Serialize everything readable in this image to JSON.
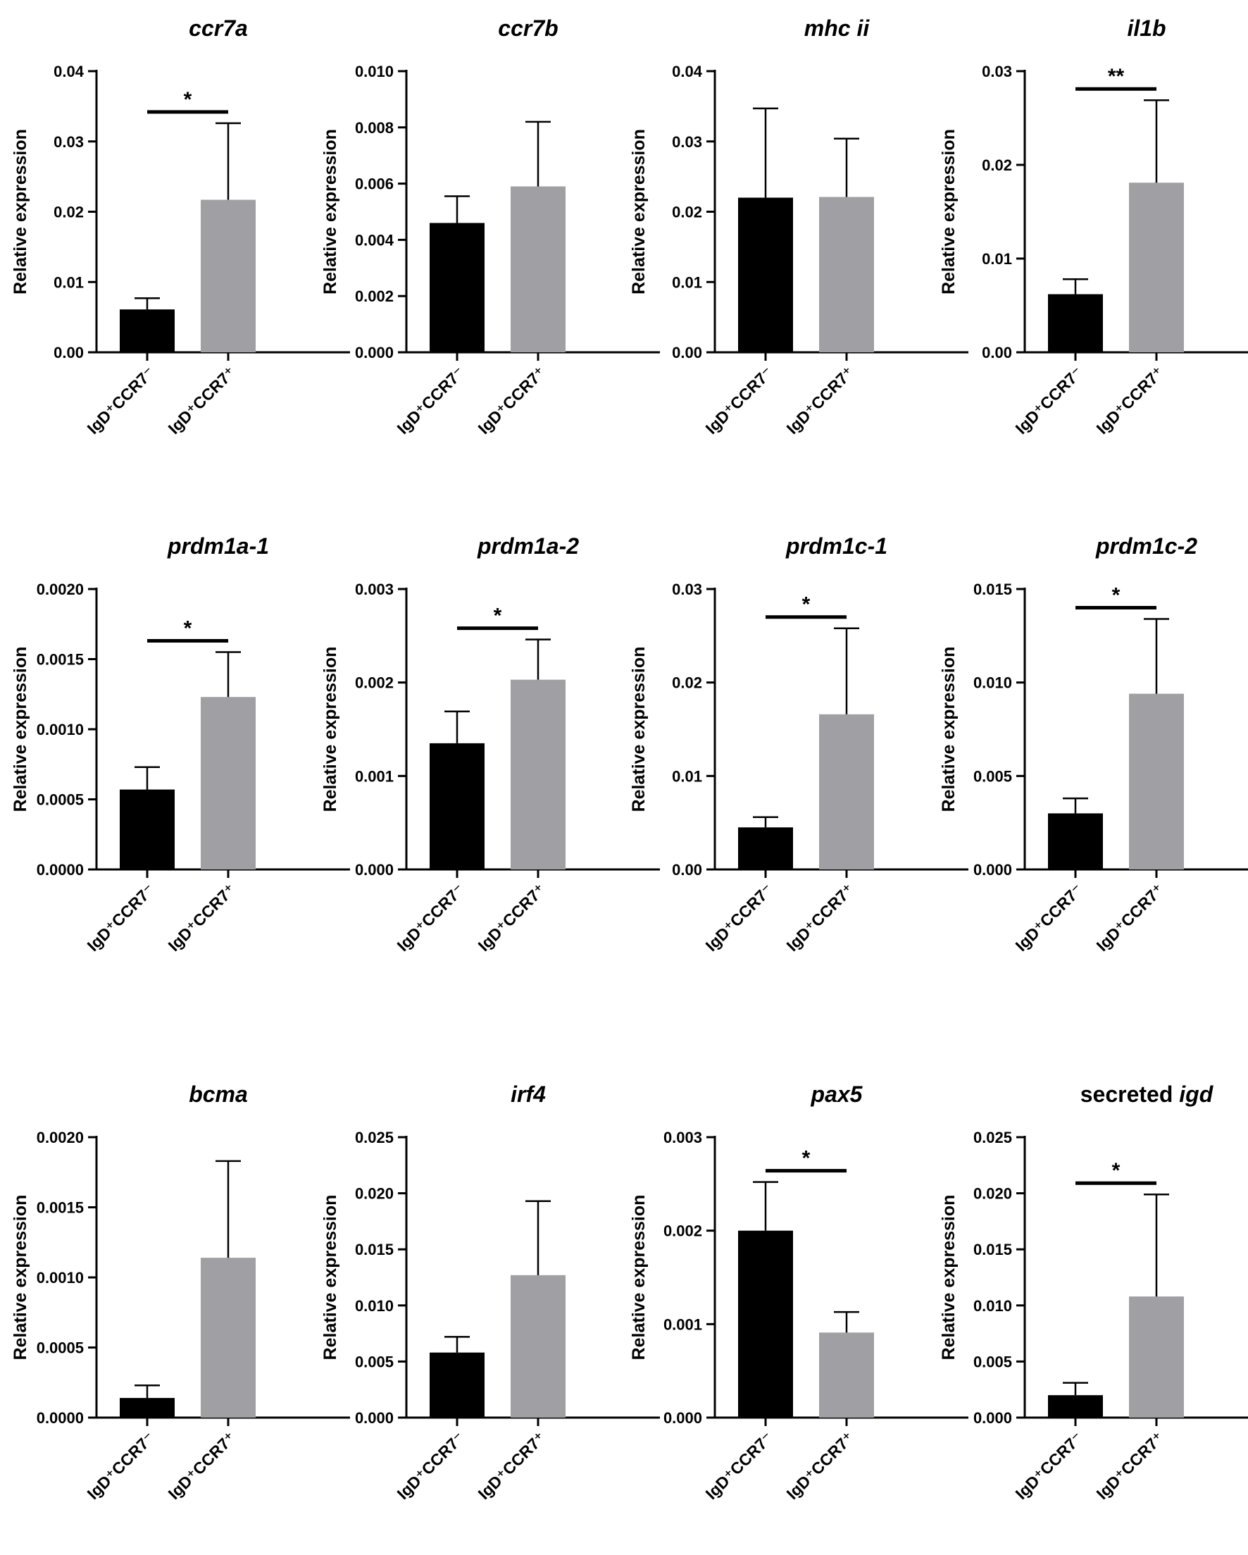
{
  "colors": {
    "group1": "#000000",
    "group2": "#a0a0a4",
    "axis": "#000000"
  },
  "chart_data": [
    {
      "type": "bar",
      "title": "ccr7a",
      "title_parts": [
        {
          "text": "ccr7a",
          "italic": true
        }
      ],
      "ylabel": "Relative expression",
      "ylim": [
        0,
        0.04
      ],
      "yticks": [
        "0.00",
        "0.01",
        "0.02",
        "0.03",
        "0.04"
      ],
      "categories": [
        "IgD⁺CCR7⁻",
        "IgD⁺CCR7⁺"
      ],
      "values": [
        0.0061,
        0.0217
      ],
      "errors": [
        0.0016,
        0.0109
      ],
      "significance": "*"
    },
    {
      "type": "bar",
      "title": "ccr7b",
      "title_parts": [
        {
          "text": "ccr7b",
          "italic": true
        }
      ],
      "ylabel": "Relative expression",
      "ylim": [
        0,
        0.01
      ],
      "yticks": [
        "0.000",
        "0.002",
        "0.004",
        "0.006",
        "0.008",
        "0.010"
      ],
      "categories": [
        "IgD⁺CCR7⁻",
        "IgD⁺CCR7⁺"
      ],
      "values": [
        0.0046,
        0.0059
      ],
      "errors": [
        0.00095,
        0.0023
      ],
      "significance": ""
    },
    {
      "type": "bar",
      "title": "mhc ii",
      "title_parts": [
        {
          "text": "mhc ii",
          "italic": true
        }
      ],
      "ylabel": "Relative expression",
      "ylim": [
        0,
        0.04
      ],
      "yticks": [
        "0.00",
        "0.01",
        "0.02",
        "0.03",
        "0.04"
      ],
      "categories": [
        "IgD⁺CCR7⁻",
        "IgD⁺CCR7⁺"
      ],
      "values": [
        0.022,
        0.0221
      ],
      "errors": [
        0.0127,
        0.0083
      ],
      "significance": ""
    },
    {
      "type": "bar",
      "title": "il1b",
      "title_parts": [
        {
          "text": "il1b",
          "italic": true
        }
      ],
      "ylabel": "Relative expression",
      "ylim": [
        0,
        0.03
      ],
      "yticks": [
        "0.00",
        "0.01",
        "0.02",
        "0.03"
      ],
      "categories": [
        "IgD⁺CCR7⁻",
        "IgD⁺CCR7⁺"
      ],
      "values": [
        0.0062,
        0.0181
      ],
      "errors": [
        0.0016,
        0.0088
      ],
      "significance": "**"
    },
    {
      "type": "bar",
      "title": "prdm1a-1",
      "title_parts": [
        {
          "text": "prdm1a-1",
          "italic": true
        }
      ],
      "ylabel": "Relative expression",
      "ylim": [
        0,
        0.002
      ],
      "yticks": [
        "0.0000",
        "0.0005",
        "0.0010",
        "0.0015",
        "0.0020"
      ],
      "categories": [
        "IgD⁺CCR7⁻",
        "IgD⁺CCR7⁺"
      ],
      "values": [
        0.00057,
        0.00123
      ],
      "errors": [
        0.00016,
        0.00032
      ],
      "significance": "*"
    },
    {
      "type": "bar",
      "title": "prdm1a-2",
      "title_parts": [
        {
          "text": "prdm1a-2",
          "italic": true
        }
      ],
      "ylabel": "Relative expression",
      "ylim": [
        0,
        0.003
      ],
      "yticks": [
        "0.000",
        "0.001",
        "0.002",
        "0.003"
      ],
      "categories": [
        "IgD⁺CCR7⁻",
        "IgD⁺CCR7⁺"
      ],
      "values": [
        0.00135,
        0.00203
      ],
      "errors": [
        0.00034,
        0.00043
      ],
      "significance": "*"
    },
    {
      "type": "bar",
      "title": "prdm1c-1",
      "title_parts": [
        {
          "text": "prdm1c-1",
          "italic": true
        }
      ],
      "ylabel": "Relative expression",
      "ylim": [
        0,
        0.03
      ],
      "yticks": [
        "0.00",
        "0.01",
        "0.02",
        "0.03"
      ],
      "categories": [
        "IgD⁺CCR7⁻",
        "IgD⁺CCR7⁺"
      ],
      "values": [
        0.0045,
        0.0166
      ],
      "errors": [
        0.0011,
        0.0092
      ],
      "significance": "*"
    },
    {
      "type": "bar",
      "title": "prdm1c-2",
      "title_parts": [
        {
          "text": "prdm1c-2",
          "italic": true
        }
      ],
      "ylabel": "Relative expression",
      "ylim": [
        0,
        0.015
      ],
      "yticks": [
        "0.000",
        "0.005",
        "0.010",
        "0.015"
      ],
      "categories": [
        "IgD⁺CCR7⁻",
        "IgD⁺CCR7⁺"
      ],
      "values": [
        0.003,
        0.0094
      ],
      "errors": [
        0.0008,
        0.004
      ],
      "significance": "*"
    },
    {
      "type": "bar",
      "title": "bcma",
      "title_parts": [
        {
          "text": "bcma",
          "italic": true
        }
      ],
      "ylabel": "Relative expression",
      "ylim": [
        0,
        0.002
      ],
      "yticks": [
        "0.0000",
        "0.0005",
        "0.0010",
        "0.0015",
        "0.0020"
      ],
      "categories": [
        "IgD⁺CCR7⁻",
        "IgD⁺CCR7⁺"
      ],
      "values": [
        0.00014,
        0.00114
      ],
      "errors": [
        9e-05,
        0.00069
      ],
      "significance": ""
    },
    {
      "type": "bar",
      "title": "irf4",
      "title_parts": [
        {
          "text": "irf4",
          "italic": true
        }
      ],
      "ylabel": "Relative expression",
      "ylim": [
        0,
        0.025
      ],
      "yticks": [
        "0.000",
        "0.005",
        "0.010",
        "0.015",
        "0.020",
        "0.025"
      ],
      "categories": [
        "IgD⁺CCR7⁻",
        "IgD⁺CCR7⁺"
      ],
      "values": [
        0.0058,
        0.0127
      ],
      "errors": [
        0.0014,
        0.0066
      ],
      "significance": ""
    },
    {
      "type": "bar",
      "title": "pax5",
      "title_parts": [
        {
          "text": "pax5",
          "italic": true
        }
      ],
      "ylabel": "Relative expression",
      "ylim": [
        0,
        0.003
      ],
      "yticks": [
        "0.000",
        "0.001",
        "0.002",
        "0.003"
      ],
      "categories": [
        "IgD⁺CCR7⁻",
        "IgD⁺CCR7⁺"
      ],
      "values": [
        0.002,
        0.00091
      ],
      "errors": [
        0.00052,
        0.00022
      ],
      "significance": "*"
    },
    {
      "type": "bar",
      "title": "secreted igd",
      "title_parts": [
        {
          "text": "secreted ",
          "italic": false
        },
        {
          "text": "igd",
          "italic": true
        }
      ],
      "ylabel": "Relative expression",
      "ylim": [
        0,
        0.025
      ],
      "yticks": [
        "0.000",
        "0.005",
        "0.010",
        "0.015",
        "0.020",
        "0.025"
      ],
      "categories": [
        "IgD⁺CCR7⁻",
        "IgD⁺CCR7⁺"
      ],
      "values": [
        0.002,
        0.0108
      ],
      "errors": [
        0.0011,
        0.0091
      ],
      "significance": "*"
    }
  ]
}
